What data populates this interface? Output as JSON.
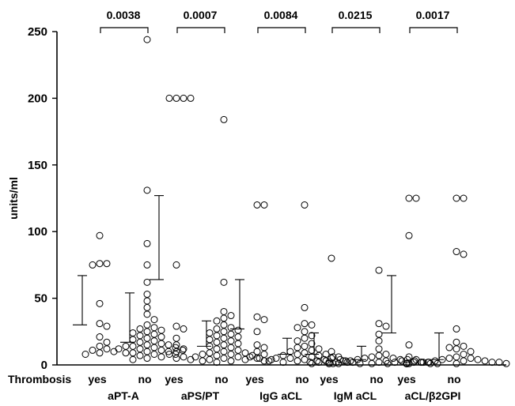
{
  "chart_data": {
    "type": "scatter",
    "ylabel": "units/ml",
    "ylim": [
      0,
      250
    ],
    "yticks": [
      0,
      50,
      100,
      150,
      200,
      250
    ],
    "row_label": "Thrombosis",
    "groups": [
      {
        "name": "aPT-A",
        "p_value": "0.0038",
        "yes": {
          "label": "yes",
          "mean": 30,
          "sd_upper": 67,
          "values": [
            97,
            76,
            76,
            75,
            46,
            31,
            29,
            21,
            17,
            14,
            12,
            11,
            10,
            9,
            8
          ]
        },
        "no": {
          "label": "no",
          "mean": 17,
          "sd_upper": 54,
          "values": [
            244,
            131,
            91,
            75,
            62,
            53,
            48,
            43,
            38,
            34,
            30,
            28,
            27,
            26,
            25,
            24,
            23,
            22,
            21,
            20,
            19,
            18,
            17,
            16,
            15,
            15,
            14,
            14,
            13,
            13,
            12,
            12,
            11,
            11,
            10,
            10,
            9,
            9,
            8,
            8,
            7,
            6,
            5,
            4
          ]
        }
      },
      {
        "name": "aPS/PT",
        "p_value": "0.0007",
        "yes": {
          "label": "yes",
          "mean": 64,
          "sd_upper": 127,
          "values": [
            200,
            200,
            200,
            200,
            75,
            29,
            27,
            20,
            15,
            12,
            10,
            8,
            6,
            5,
            4
          ]
        },
        "no": {
          "label": "no",
          "mean": 14,
          "sd_upper": 33,
          "values": [
            184,
            62,
            40,
            37,
            35,
            33,
            30,
            28,
            27,
            26,
            25,
            24,
            23,
            22,
            21,
            20,
            19,
            18,
            17,
            16,
            15,
            14,
            13,
            12,
            11,
            10,
            9,
            9,
            8,
            8,
            7,
            7,
            6,
            6,
            5,
            5,
            4,
            4,
            3,
            3,
            2
          ]
        }
      },
      {
        "name": "IgG aCL",
        "p_value": "0.0084",
        "yes": {
          "label": "yes",
          "mean": 27,
          "sd_upper": 64,
          "values": [
            120,
            120,
            36,
            34,
            25,
            15,
            13,
            10,
            8,
            6,
            5,
            4,
            3
          ]
        },
        "no": {
          "label": "no",
          "mean": 8,
          "sd_upper": 20,
          "values": [
            120,
            43,
            31,
            30,
            28,
            25,
            22,
            20,
            18,
            16,
            14,
            13,
            12,
            11,
            10,
            9,
            8,
            8,
            7,
            7,
            6,
            6,
            5,
            5,
            4,
            4,
            3,
            3,
            3,
            2,
            2,
            2,
            1,
            1
          ]
        }
      },
      {
        "name": "IgM aCL",
        "p_value": "0.0215",
        "yes": {
          "label": "yes",
          "mean": 8,
          "sd_upper": 24,
          "values": [
            80,
            10,
            6,
            5,
            4,
            3,
            3,
            2,
            2,
            1,
            1
          ]
        },
        "no": {
          "label": "no",
          "mean": 4,
          "sd_upper": 14,
          "values": [
            71,
            31,
            29,
            23,
            18,
            12,
            8,
            7,
            6,
            5,
            5,
            4,
            4,
            4,
            3,
            3,
            3,
            3,
            2,
            2,
            2,
            2,
            2,
            1,
            1,
            1,
            1
          ]
        }
      },
      {
        "name": "aCL/β2GPI",
        "p_value": "0.0017",
        "yes": {
          "label": "yes",
          "mean": 24,
          "sd_upper": 67,
          "values": [
            125,
            125,
            97,
            15,
            6,
            4,
            3,
            2,
            2,
            1,
            1,
            1,
            1
          ]
        },
        "no": {
          "label": "no",
          "mean": 4,
          "sd_upper": 24,
          "values": [
            125,
            125,
            85,
            83,
            27,
            17,
            14,
            13,
            12,
            10,
            8,
            6,
            5,
            5,
            4,
            4,
            3,
            3,
            3,
            2,
            2,
            2,
            2,
            2,
            1,
            1,
            1,
            1,
            1,
            1,
            1,
            1,
            1,
            1,
            1,
            1,
            1,
            1,
            1,
            1,
            1
          ]
        }
      }
    ]
  }
}
